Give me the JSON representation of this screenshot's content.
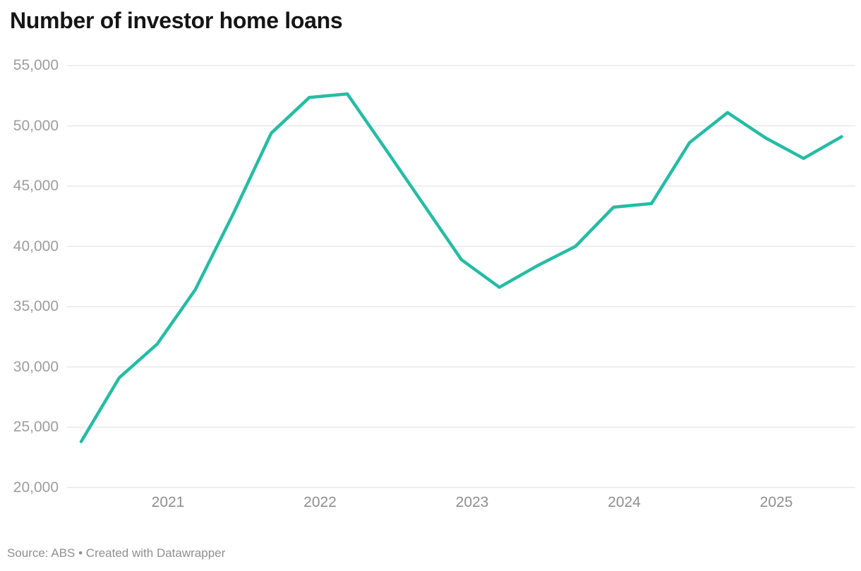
{
  "header": {
    "title": "Number of investor home loans"
  },
  "footer": {
    "source": "Source: ABS • Created with Datawrapper"
  },
  "colors": {
    "line": "#25bca4",
    "grid": "#e8e8e8",
    "y_tick_text": "#9d9d9d",
    "x_tick_text": "#8f8f8f",
    "title_text": "#151515",
    "source_text": "#8f8f8f",
    "background": "#ffffff"
  },
  "chart_data": {
    "type": "line",
    "title": "Number of investor home loans",
    "xlabel": "",
    "ylabel": "",
    "ylim": [
      20000,
      55000
    ],
    "grid": "horizontal-only",
    "legend": "none",
    "frequency": "quarterly",
    "y_tick_labels": [
      "55,000",
      "50,000",
      "45,000",
      "40,000",
      "35,000",
      "30,000",
      "25,000",
      "20,000"
    ],
    "y_tick_values": [
      55000,
      50000,
      45000,
      40000,
      35000,
      30000,
      25000,
      20000
    ],
    "x_tick_labels": [
      "2021",
      "2022",
      "2023",
      "2024",
      "2025"
    ],
    "x": [
      "2020-Q2",
      "2020-Q3",
      "2020-Q4",
      "2021-Q1",
      "2021-Q2",
      "2021-Q3",
      "2021-Q4",
      "2022-Q1",
      "2022-Q2",
      "2022-Q3",
      "2022-Q4",
      "2023-Q1",
      "2023-Q2",
      "2023-Q3",
      "2023-Q4",
      "2024-Q1",
      "2024-Q2",
      "2024-Q3",
      "2024-Q4",
      "2025-Q1",
      "2025-Q2"
    ],
    "series": [
      {
        "name": "Number of investor home loans",
        "values": [
          23800,
          29100,
          31900,
          36400,
          42700,
          49400,
          52350,
          52650,
          48100,
          43500,
          38900,
          36600,
          38400,
          40000,
          43250,
          43550,
          48600,
          51100,
          49000,
          47300,
          49100
        ]
      }
    ],
    "source": "Source: ABS • Created with Datawrapper"
  }
}
